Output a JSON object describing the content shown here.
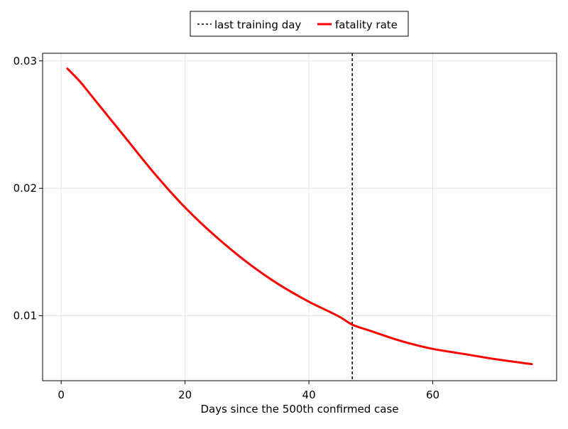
{
  "chart_data": {
    "type": "line",
    "xlabel": "Days since the 500th confirmed case",
    "ylabel": "",
    "xlim": [
      -3,
      80
    ],
    "ylim": [
      0.0049,
      0.0306
    ],
    "x_ticks": [
      0,
      20,
      40,
      60
    ],
    "x_tick_labels": [
      "0",
      "20",
      "40",
      "60"
    ],
    "y_ticks": [
      0.01,
      0.02,
      0.03
    ],
    "y_tick_labels": [
      "0.01",
      "0.02",
      "0.03"
    ],
    "grid": true,
    "legend_position": "top-center",
    "legend": [
      {
        "label": "last training day",
        "style": "dashed",
        "color": "#000000"
      },
      {
        "label": "fatality rate",
        "style": "solid",
        "color": "#ff0000"
      }
    ],
    "vlines": [
      {
        "name": "last training day",
        "x": 47,
        "color": "#000000",
        "style": "dashed"
      }
    ],
    "series": [
      {
        "name": "fatality rate",
        "color": "#ff0000",
        "x": [
          1,
          3,
          5,
          10,
          15,
          20,
          25,
          30,
          35,
          40,
          45,
          47,
          50,
          55,
          60,
          65,
          70,
          76
        ],
        "y": [
          0.0294,
          0.0284,
          0.0272,
          0.0242,
          0.0212,
          0.0185,
          0.0162,
          0.0142,
          0.0125,
          0.0111,
          0.0099,
          0.0093,
          0.0088,
          0.008,
          0.0074,
          0.007,
          0.0066,
          0.0062
        ]
      }
    ]
  }
}
